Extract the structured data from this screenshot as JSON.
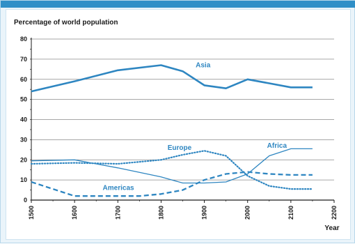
{
  "chart_data": {
    "type": "line",
    "title": "",
    "ylabel": "Percentage of world population",
    "xlabel": "Year",
    "xlim": [
      1500,
      2200
    ],
    "ylim": [
      0,
      80
    ],
    "x_ticks": [
      1500,
      1600,
      1700,
      1800,
      1900,
      2000,
      2100,
      2200
    ],
    "y_ticks": [
      0,
      10,
      20,
      30,
      40,
      50,
      60,
      70,
      80
    ],
    "grid": "horizontal",
    "line_color": "#2e86c1",
    "series": [
      {
        "name": "Asia",
        "style": "solid-thick",
        "points": [
          [
            1500,
            54
          ],
          [
            1600,
            59
          ],
          [
            1700,
            64.5
          ],
          [
            1800,
            67
          ],
          [
            1850,
            64
          ],
          [
            1900,
            57
          ],
          [
            1950,
            55.5
          ],
          [
            2000,
            60
          ],
          [
            2050,
            58
          ],
          [
            2100,
            56
          ],
          [
            2150,
            56
          ]
        ]
      },
      {
        "name": "Europe",
        "style": "dotted",
        "points": [
          [
            1500,
            18
          ],
          [
            1600,
            18.5
          ],
          [
            1700,
            18
          ],
          [
            1800,
            20
          ],
          [
            1850,
            22.5
          ],
          [
            1900,
            24.5
          ],
          [
            1950,
            22
          ],
          [
            2000,
            12
          ],
          [
            2050,
            7
          ],
          [
            2100,
            5.5
          ],
          [
            2150,
            5.5
          ]
        ]
      },
      {
        "name": "Africa",
        "style": "solid-thin",
        "points": [
          [
            1500,
            19.5
          ],
          [
            1600,
            20
          ],
          [
            1700,
            16
          ],
          [
            1800,
            11.5
          ],
          [
            1850,
            8.5
          ],
          [
            1900,
            8.5
          ],
          [
            1950,
            9
          ],
          [
            2000,
            13
          ],
          [
            2050,
            22
          ],
          [
            2100,
            25.5
          ],
          [
            2150,
            25.5
          ]
        ]
      },
      {
        "name": "Americas",
        "style": "dashed",
        "points": [
          [
            1500,
            9
          ],
          [
            1600,
            2
          ],
          [
            1700,
            2
          ],
          [
            1750,
            2
          ],
          [
            1800,
            3
          ],
          [
            1850,
            5
          ],
          [
            1900,
            10
          ],
          [
            1950,
            13
          ],
          [
            2000,
            14
          ],
          [
            2050,
            13
          ],
          [
            2100,
            12.5
          ],
          [
            2150,
            12.5
          ]
        ]
      }
    ],
    "labels": [
      {
        "text": "Asia",
        "series": "Asia",
        "x": 1880,
        "y": 66
      },
      {
        "text": "Europe",
        "series": "Europe",
        "x": 1815,
        "y": 25
      },
      {
        "text": "Africa",
        "series": "Africa",
        "x": 2045,
        "y": 26
      },
      {
        "text": "Americas",
        "series": "Americas",
        "x": 1665,
        "y": 5
      }
    ]
  }
}
